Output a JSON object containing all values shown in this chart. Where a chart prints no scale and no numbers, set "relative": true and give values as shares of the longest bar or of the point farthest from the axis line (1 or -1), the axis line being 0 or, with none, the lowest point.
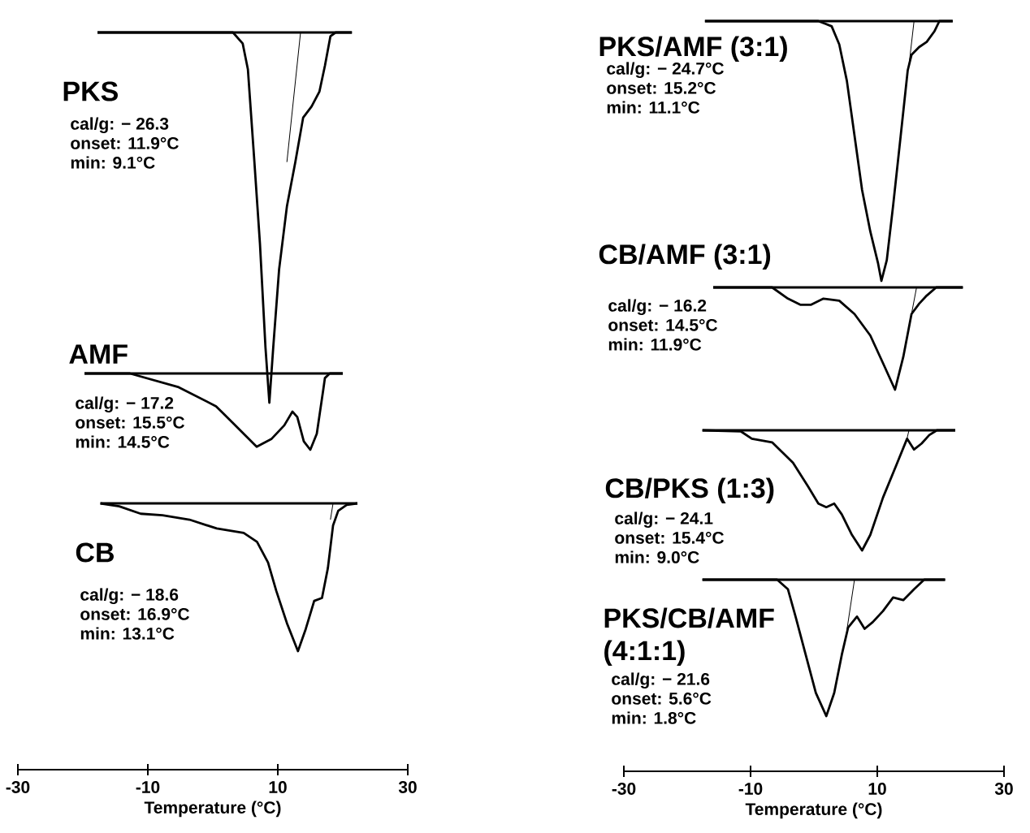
{
  "chart_data": [
    {
      "type": "line",
      "relative": true,
      "title": "PKS",
      "annotations": [
        "cal/g: − 26.3",
        "onset: 11.9°C",
        "min: 9.1°C"
      ],
      "xlim": [
        -30,
        30
      ],
      "tick_labels": false,
      "series": [
        {
          "color": "#000000",
          "x": [
            -17.75,
            3.1,
            4.6,
            5.4,
            6.4,
            7.25,
            8.1,
            8.7,
            9.3,
            10.2,
            11.4,
            12.7,
            13.9,
            15.2,
            16.4,
            17.25,
            18.1,
            18.9,
            21.4
          ],
          "values": [
            0,
            0,
            -0.03,
            -0.1,
            -0.35,
            -0.57,
            -0.85,
            -1,
            -0.85,
            -0.64,
            -0.47,
            -0.35,
            -0.23,
            -0.2,
            -0.16,
            -0.09,
            -0.01,
            0,
            0
          ]
        },
        {
          "color": "#000000",
          "x": [
            -17.75,
            21.4
          ],
          "values": [
            0,
            0
          ]
        },
        {
          "color": "#000000",
          "x": [
            13.5,
            11.4
          ],
          "values": [
            0,
            -0.35
          ]
        }
      ]
    },
    {
      "type": "line",
      "relative": true,
      "title": "AMF",
      "annotations": [
        "cal/g: − 17.2",
        "onset: 15.5°C",
        "min: 14.5°C"
      ],
      "xlim": [
        -30,
        30
      ],
      "tick_labels": false,
      "series": [
        {
          "color": "#000000",
          "x": [
            -19.75,
            -12.75,
            -5.25,
            0.5,
            3,
            6.75,
            9,
            11,
            12.25,
            13,
            14,
            15,
            16,
            17,
            17.25,
            18,
            20
          ],
          "values": [
            0,
            0,
            -0.18,
            -0.43,
            -0.64,
            -0.96,
            -0.86,
            -0.68,
            -0.5,
            -0.57,
            -0.89,
            -1,
            -0.79,
            -0.21,
            -0.06,
            0,
            0
          ]
        },
        {
          "color": "#000000",
          "x": [
            -19.75,
            20
          ],
          "values": [
            0,
            0
          ]
        }
      ]
    },
    {
      "type": "line",
      "relative": true,
      "title": "CB",
      "annotations": [
        "cal/g: − 18.6",
        "onset: 16.9°C",
        "min: 13.1°C"
      ],
      "xlim": [
        -30,
        30
      ],
      "xticks": [
        -30,
        -10,
        10,
        30
      ],
      "xlabel": "Temperature (°C)",
      "tick_labels": "x",
      "series": [
        {
          "color": "#000000",
          "x": [
            -17.3,
            -14.4,
            -11.1,
            -7.75,
            -3.6,
            0.6,
            4.75,
            6.8,
            8.5,
            9.75,
            11.4,
            13.1,
            14.3,
            15.6,
            16.8,
            17.7,
            18.5,
            19.3,
            20.6,
            22.25
          ],
          "values": [
            0,
            -0.02,
            -0.07,
            -0.08,
            -0.11,
            -0.17,
            -0.2,
            -0.26,
            -0.4,
            -0.59,
            -0.81,
            -1,
            -0.85,
            -0.66,
            -0.64,
            -0.44,
            -0.15,
            -0.05,
            -0.01,
            0
          ]
        },
        {
          "color": "#000000",
          "x": [
            -17.3,
            22.25
          ],
          "values": [
            0,
            0
          ]
        },
        {
          "color": "#000000",
          "x": [
            18.5,
            18.1
          ],
          "values": [
            0,
            -0.11
          ]
        }
      ]
    },
    {
      "type": "line",
      "relative": true,
      "title": "PKS/AMF (3:1)",
      "annotations": [
        "cal/g: − 24.7°C",
        "onset: 15.2°C",
        "min: 11.1°C"
      ],
      "xlim": [
        -30,
        30
      ],
      "tick_labels": false,
      "series": [
        {
          "color": "#000000",
          "x": [
            -17.2,
            0.7,
            2.8,
            4.0,
            5.2,
            6.4,
            7.6,
            8.9,
            10.1,
            10.65,
            11.5,
            12.5,
            13.7,
            14.8,
            15.4,
            16.6,
            17.8,
            19.0,
            19.8,
            21.9
          ],
          "values": [
            0,
            0,
            -0.02,
            -0.09,
            -0.23,
            -0.44,
            -0.65,
            -0.81,
            -0.93,
            -1,
            -0.92,
            -0.71,
            -0.44,
            -0.19,
            -0.13,
            -0.1,
            -0.08,
            -0.04,
            0,
            0
          ]
        },
        {
          "color": "#000000",
          "x": [
            -17.2,
            21.9
          ],
          "values": [
            0,
            0
          ]
        },
        {
          "color": "#000000",
          "x": [
            15.8,
            15.0
          ],
          "values": [
            0,
            -0.17
          ]
        }
      ]
    },
    {
      "type": "line",
      "relative": true,
      "title": "CB/AMF (3:1)",
      "annotations": [
        "cal/g: − 16.2",
        "onset: 14.5°C",
        "min: 11.9°C"
      ],
      "xlim": [
        -30,
        30
      ],
      "tick_labels": false,
      "series": [
        {
          "color": "#000000",
          "x": [
            -15.9,
            -6.6,
            -4.1,
            -2.1,
            -0.5,
            1.5,
            4.0,
            6.4,
            8.9,
            10.9,
            12.8,
            14.1,
            15.4,
            16.6,
            17.8,
            19.3,
            23.5
          ],
          "values": [
            0,
            0,
            -0.11,
            -0.17,
            -0.17,
            -0.11,
            -0.13,
            -0.26,
            -0.47,
            -0.74,
            -1,
            -0.68,
            -0.26,
            -0.16,
            -0.08,
            0,
            0
          ]
        },
        {
          "color": "#000000",
          "x": [
            -15.9,
            23.5
          ],
          "values": [
            0,
            0
          ]
        },
        {
          "color": "#000000",
          "x": [
            16.2,
            15.4
          ],
          "values": [
            0,
            -0.26
          ]
        }
      ]
    },
    {
      "type": "line",
      "relative": true,
      "title": "CB/PKS (1:3)",
      "annotations": [
        "cal/g: − 24.1",
        "onset: 15.4°C",
        "min: 9.0°C"
      ],
      "xlim": [
        -30,
        30
      ],
      "tick_labels": false,
      "series": [
        {
          "color": "#000000",
          "x": [
            -17.6,
            -11.5,
            -9.8,
            -6.6,
            -3.3,
            -0.9,
            0.7,
            1.95,
            3.2,
            4.4,
            6.0,
            7.6,
            8.9,
            10.9,
            13.0,
            14.7,
            15.8,
            17.0,
            18.2,
            19.4,
            22.3
          ],
          "values": [
            0,
            -0.01,
            -0.07,
            -0.1,
            -0.27,
            -0.47,
            -0.61,
            -0.64,
            -0.61,
            -0.7,
            -0.87,
            -1,
            -0.87,
            -0.56,
            -0.29,
            -0.07,
            -0.16,
            -0.11,
            -0.04,
            0,
            0
          ]
        },
        {
          "color": "#000000",
          "x": [
            -17.6,
            22.3
          ],
          "values": [
            0,
            0
          ]
        },
        {
          "color": "#000000",
          "x": [
            15.0,
            14.6
          ],
          "values": [
            0,
            -0.09
          ]
        }
      ]
    },
    {
      "type": "line",
      "relative": true,
      "title": "PKS/CB/AMF (4:1:1)",
      "annotations": [
        "cal/g: − 21.6",
        "onset: 5.6°C",
        "min: 1.8°C"
      ],
      "xlim": [
        -30,
        30
      ],
      "xticks": [
        -30,
        -10,
        10,
        30
      ],
      "xlabel": "Temperature (°C)",
      "tick_labels": "x",
      "series": [
        {
          "color": "#000000",
          "x": [
            -17.6,
            -5.8,
            -4.1,
            -2.9,
            -1.3,
            0.3,
            1.95,
            3.2,
            4.4,
            5.4,
            6.8,
            8.0,
            9.3,
            10.9,
            12.5,
            14.1,
            15.8,
            17.4,
            20.7
          ],
          "values": [
            0,
            0,
            -0.07,
            -0.27,
            -0.55,
            -0.83,
            -1,
            -0.83,
            -0.55,
            -0.35,
            -0.27,
            -0.36,
            -0.31,
            -0.23,
            -0.13,
            -0.15,
            -0.07,
            0,
            0
          ]
        },
        {
          "color": "#000000",
          "x": [
            -17.6,
            20.7
          ],
          "values": [
            0,
            0
          ]
        },
        {
          "color": "#000000",
          "x": [
            6.4,
            5.2
          ],
          "values": [
            0,
            -0.37
          ]
        }
      ]
    }
  ]
}
